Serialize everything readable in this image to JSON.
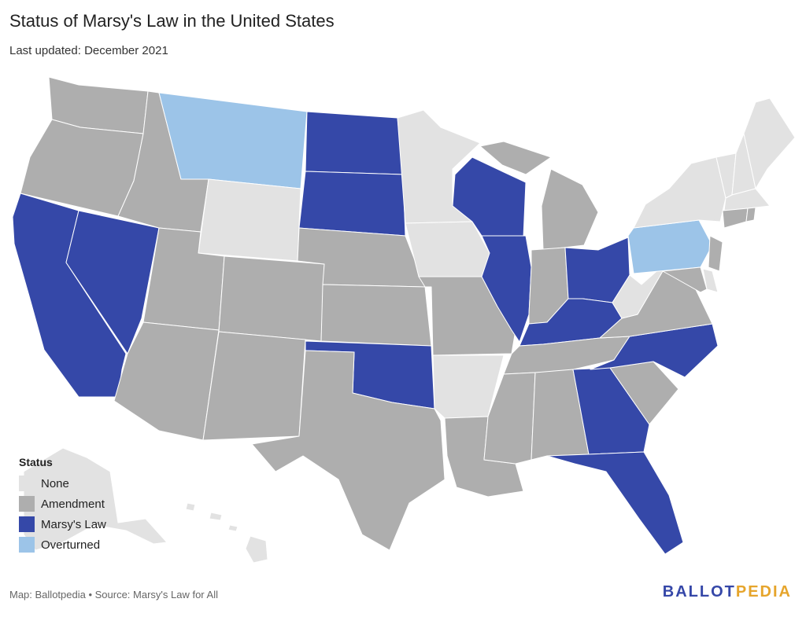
{
  "header": {
    "title": "Status of Marsy's Law in the United States",
    "subtitle": "Last updated: December 2021"
  },
  "colors": {
    "None": "#e2e2e2",
    "Amendment": "#aeaeae",
    "Marsy's Law": "#3548a8",
    "Overturned": "#9cc4e8"
  },
  "legend": {
    "title": "Status",
    "items": [
      {
        "label": "None",
        "status": "None"
      },
      {
        "label": "Amendment",
        "status": "Amendment"
      },
      {
        "label": "Marsy's Law",
        "status": "Marsy's Law"
      },
      {
        "label": "Overturned",
        "status": "Overturned"
      }
    ]
  },
  "states": {
    "WA": "Amendment",
    "OR": "Amendment",
    "CA": "Marsy's Law",
    "NV": "Marsy's Law",
    "ID": "Amendment",
    "MT": "Overturned",
    "WY": "None",
    "UT": "Amendment",
    "AZ": "Amendment",
    "CO": "Amendment",
    "NM": "Amendment",
    "ND": "Marsy's Law",
    "SD": "Marsy's Law",
    "NE": "Amendment",
    "KS": "Amendment",
    "OK": "Marsy's Law",
    "TX": "Amendment",
    "MN": "None",
    "IA": "None",
    "MO": "Amendment",
    "AR": "None",
    "LA": "Amendment",
    "WI": "Marsy's Law",
    "IL": "Marsy's Law",
    "MI": "Amendment",
    "IN": "Amendment",
    "OH": "Marsy's Law",
    "KY": "Marsy's Law",
    "TN": "Amendment",
    "MS": "Amendment",
    "AL": "Amendment",
    "GA": "Marsy's Law",
    "FL": "Marsy's Law",
    "SC": "Amendment",
    "NC": "Marsy's Law",
    "VA": "Amendment",
    "WV": "None",
    "PA": "Overturned",
    "NY": "None",
    "ME": "None",
    "NH": "None",
    "VT": "None",
    "MA": "None",
    "CT": "Amendment",
    "RI": "Amendment",
    "NJ": "Amendment",
    "DE": "None",
    "MD": "Amendment",
    "AK": "None",
    "HI": "None"
  },
  "footer": {
    "source": "Map: Ballotpedia • Source: Marsy's Law for All",
    "brand_part1": "BALLOT",
    "brand_part2": "PEDIA"
  }
}
